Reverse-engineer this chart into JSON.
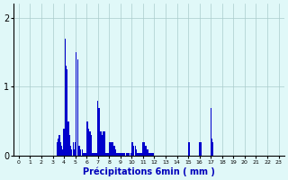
{
  "xlabel": "Précipitations 6min ( mm )",
  "bar_color": "#0000cc",
  "background_color": "#e0f8f8",
  "grid_color": "#aacccc",
  "ylim": [
    0,
    2.2
  ],
  "yticks": [
    0,
    1,
    2
  ],
  "num_hours": 24,
  "intervals_per_hour": 10,
  "values": [
    0,
    0,
    0,
    0,
    0,
    0,
    0,
    0,
    0,
    0,
    0,
    0,
    0,
    0,
    0,
    0,
    0,
    0,
    0,
    0,
    0,
    0,
    0,
    0,
    0,
    0,
    0,
    0,
    0,
    0,
    0,
    0,
    0,
    0,
    0.2,
    0.25,
    0.3,
    0.2,
    0.15,
    0.1,
    0.4,
    1.7,
    1.3,
    1.25,
    0.5,
    0.3,
    0.15,
    0.1,
    0.2,
    0.1,
    0.2,
    1.5,
    1.4,
    0.15,
    0.15,
    0.1,
    0.1,
    0.05,
    0.05,
    0.05,
    0.5,
    0.5,
    0.4,
    0.35,
    0.3,
    0.05,
    0.05,
    0.05,
    0.05,
    0.05,
    0.8,
    0.7,
    0.35,
    0.35,
    0.3,
    0.35,
    0.35,
    0.05,
    0.05,
    0.05,
    0.2,
    0.2,
    0.2,
    0.2,
    0.15,
    0.15,
    0.1,
    0.05,
    0.05,
    0.05,
    0.05,
    0.05,
    0.05,
    0.05,
    0.05,
    0.05,
    0.05,
    0.05,
    0.05,
    0.05,
    0.2,
    0.2,
    0.15,
    0.15,
    0.1,
    0.05,
    0.05,
    0.05,
    0.05,
    0.05,
    0.2,
    0.2,
    0.15,
    0.15,
    0.1,
    0.05,
    0.05,
    0.05,
    0.05,
    0.05,
    0.0,
    0.0,
    0.0,
    0.0,
    0.0,
    0.0,
    0.0,
    0.0,
    0.0,
    0.0,
    0.0,
    0.0,
    0.0,
    0.0,
    0.0,
    0.0,
    0.0,
    0.0,
    0.0,
    0.0,
    0.0,
    0.0,
    0.0,
    0.0,
    0.0,
    0.0,
    0.0,
    0.0,
    0.0,
    0.0,
    0.2,
    0.2,
    0.0,
    0.0,
    0.0,
    0.0,
    0.0,
    0.0,
    0.0,
    0.0,
    0.2,
    0.2,
    0.0,
    0.0,
    0.0,
    0.0,
    0.0,
    0.0,
    0.0,
    0.0,
    0.7,
    0.25,
    0.2,
    0.0,
    0.0,
    0.0,
    0.0,
    0.0,
    0.0,
    0.0,
    0.0,
    0.0,
    0.0,
    0.0,
    0.0,
    0.0,
    0.0,
    0.0,
    0.0,
    0.0,
    0.0,
    0.0,
    0.0,
    0.0,
    0.0,
    0.0,
    0.0,
    0.0,
    0.0,
    0.0,
    0.0,
    0.0,
    0.0,
    0.0,
    0.0,
    0.0,
    0.0,
    0.0,
    0.0,
    0.0,
    0.0,
    0.0,
    0.0,
    0.0,
    0.0,
    0.0,
    0.0,
    0.0,
    0.0,
    0.0,
    0.0,
    0.0,
    0.0,
    0.0,
    0.0,
    0.0,
    0.0,
    0.0,
    0.0,
    0.0,
    0.0,
    0.0,
    0.0,
    0.0,
    0.0,
    0.0,
    0.0,
    0.0,
    0.0,
    0.0
  ]
}
